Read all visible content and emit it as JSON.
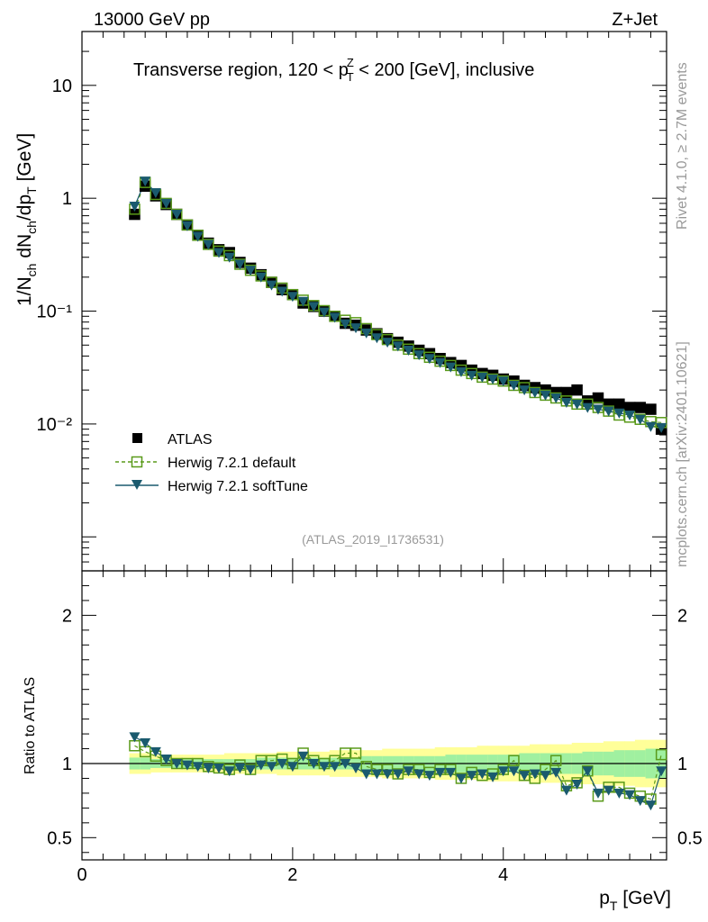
{
  "header": {
    "energy_label": "13000 GeV pp",
    "process_label": "Z+Jet",
    "side_rivet": "Rivet 4.1.0, ≥ 2.7M events",
    "side_source": "mcplots.cern.ch [arXiv:2401.10621]",
    "analysis_id": "(ATLAS_2019_I1736531)"
  },
  "colors": {
    "atlas": "#000000",
    "herwig_default": "#5a9a1a",
    "herwig_soft": "#1a5a6e",
    "band_inner": "#a0f0a0",
    "band_outer": "#ffff99"
  },
  "chart_data": [
    {
      "type": "scatter",
      "panel": "main",
      "title_parts": {
        "prefix": "Transverse region, 120 < p",
        "sup": "Z",
        "sub": "T",
        "suffix": " < 200 [GeV], inclusive"
      },
      "ylabel": "1/N_ch dN_ch/dp_T [GeV]",
      "yscale": "log",
      "ylim": [
        0.0005,
        30
      ],
      "xlim": [
        0,
        5.55
      ],
      "ytick_labels": [
        "10",
        "1",
        "10⁻¹",
        "10⁻²"
      ],
      "x": [
        0.5,
        0.6,
        0.7,
        0.8,
        0.9,
        1.0,
        1.1,
        1.2,
        1.3,
        1.4,
        1.5,
        1.6,
        1.7,
        1.8,
        1.9,
        2.0,
        2.1,
        2.2,
        2.3,
        2.4,
        2.5,
        2.6,
        2.7,
        2.8,
        2.9,
        3.0,
        3.1,
        3.2,
        3.3,
        3.4,
        3.5,
        3.6,
        3.7,
        3.8,
        3.9,
        4.0,
        4.1,
        4.2,
        4.3,
        4.4,
        4.5,
        4.6,
        4.7,
        4.8,
        4.9,
        5.0,
        5.1,
        5.2,
        5.3,
        5.4,
        5.5
      ],
      "series": [
        {
          "name": "ATLAS",
          "marker": "square-filled",
          "values": [
            0.72,
            1.28,
            1.05,
            0.88,
            0.72,
            0.58,
            0.47,
            0.4,
            0.35,
            0.33,
            0.27,
            0.24,
            0.21,
            0.18,
            0.155,
            0.14,
            0.118,
            0.11,
            0.1,
            0.09,
            0.078,
            0.075,
            0.068,
            0.063,
            0.057,
            0.053,
            0.049,
            0.045,
            0.042,
            0.038,
            0.035,
            0.033,
            0.03,
            0.028,
            0.027,
            0.025,
            0.024,
            0.022,
            0.021,
            0.02,
            0.019,
            0.019,
            0.02,
            0.016,
            0.017,
            0.015,
            0.015,
            0.014,
            0.014,
            0.0135,
            0.009
          ]
        },
        {
          "name": "Herwig 7.2.1 default",
          "marker": "square-open",
          "line": "dashed",
          "values": [
            0.8,
            1.38,
            1.08,
            0.9,
            0.72,
            0.58,
            0.47,
            0.39,
            0.34,
            0.31,
            0.26,
            0.23,
            0.205,
            0.18,
            0.16,
            0.14,
            0.125,
            0.112,
            0.101,
            0.09,
            0.083,
            0.079,
            0.07,
            0.062,
            0.056,
            0.05,
            0.046,
            0.042,
            0.039,
            0.036,
            0.033,
            0.03,
            0.028,
            0.026,
            0.025,
            0.024,
            0.022,
            0.021,
            0.019,
            0.018,
            0.017,
            0.016,
            0.015,
            0.015,
            0.014,
            0.013,
            0.012,
            0.0115,
            0.011,
            0.0105,
            0.0103
          ]
        },
        {
          "name": "Herwig 7.2.1 softTune",
          "marker": "triangle-down-filled",
          "line": "solid",
          "values": [
            0.85,
            1.42,
            1.12,
            0.9,
            0.72,
            0.57,
            0.46,
            0.39,
            0.33,
            0.3,
            0.26,
            0.23,
            0.2,
            0.17,
            0.15,
            0.135,
            0.122,
            0.11,
            0.098,
            0.088,
            0.077,
            0.071,
            0.064,
            0.058,
            0.053,
            0.049,
            0.045,
            0.041,
            0.038,
            0.035,
            0.032,
            0.029,
            0.027,
            0.026,
            0.025,
            0.024,
            0.022,
            0.02,
            0.019,
            0.018,
            0.017,
            0.0155,
            0.015,
            0.014,
            0.0135,
            0.013,
            0.0125,
            0.012,
            0.011,
            0.0095,
            0.0093
          ]
        }
      ]
    },
    {
      "type": "scatter",
      "panel": "ratio",
      "xlabel": "p_T [GeV]",
      "ylabel": "Ratio to ATLAS",
      "ylim": [
        0.35,
        2.3
      ],
      "xlim": [
        0,
        5.55
      ],
      "xtick_labels": [
        "0",
        "2",
        "4"
      ],
      "ytick_labels": [
        "0.5",
        "1",
        "2"
      ],
      "x": [
        0.5,
        0.6,
        0.7,
        0.8,
        0.9,
        1.0,
        1.1,
        1.2,
        1.3,
        1.4,
        1.5,
        1.6,
        1.7,
        1.8,
        1.9,
        2.0,
        2.1,
        2.2,
        2.3,
        2.4,
        2.5,
        2.6,
        2.7,
        2.8,
        2.9,
        3.0,
        3.1,
        3.2,
        3.3,
        3.4,
        3.5,
        3.6,
        3.7,
        3.8,
        3.9,
        4.0,
        4.1,
        4.2,
        4.3,
        4.4,
        4.5,
        4.6,
        4.7,
        4.8,
        4.9,
        5.0,
        5.1,
        5.2,
        5.3,
        5.4,
        5.5
      ],
      "band_inner": [
        0.04,
        0.04,
        0.03,
        0.03,
        0.03,
        0.03,
        0.03,
        0.03,
        0.03,
        0.03,
        0.03,
        0.03,
        0.04,
        0.04,
        0.04,
        0.04,
        0.04,
        0.04,
        0.04,
        0.04,
        0.04,
        0.04,
        0.05,
        0.05,
        0.05,
        0.05,
        0.05,
        0.05,
        0.05,
        0.05,
        0.06,
        0.06,
        0.06,
        0.06,
        0.06,
        0.06,
        0.06,
        0.07,
        0.07,
        0.07,
        0.07,
        0.07,
        0.07,
        0.08,
        0.08,
        0.08,
        0.09,
        0.09,
        0.09,
        0.1,
        0.1
      ],
      "band_outer": [
        0.07,
        0.07,
        0.06,
        0.06,
        0.06,
        0.06,
        0.06,
        0.06,
        0.06,
        0.07,
        0.07,
        0.07,
        0.07,
        0.07,
        0.08,
        0.08,
        0.08,
        0.08,
        0.08,
        0.09,
        0.09,
        0.09,
        0.09,
        0.09,
        0.1,
        0.1,
        0.1,
        0.1,
        0.1,
        0.11,
        0.11,
        0.11,
        0.11,
        0.12,
        0.12,
        0.12,
        0.12,
        0.12,
        0.13,
        0.13,
        0.13,
        0.13,
        0.14,
        0.14,
        0.14,
        0.15,
        0.15,
        0.15,
        0.16,
        0.16,
        0.16
      ],
      "series": [
        {
          "name": "Herwig 7.2.1 default",
          "values": [
            1.12,
            1.08,
            1.05,
            1.02,
            1.0,
            1.0,
            1.0,
            0.98,
            0.97,
            0.96,
            0.99,
            0.96,
            1.02,
            1.02,
            1.03,
            1.0,
            1.07,
            1.02,
            1.0,
            1.02,
            1.07,
            1.07,
            0.98,
            0.96,
            0.96,
            0.93,
            0.96,
            0.96,
            0.94,
            0.96,
            0.96,
            0.9,
            0.94,
            0.92,
            0.93,
            0.96,
            1.02,
            0.92,
            0.9,
            0.96,
            1.02,
            0.85,
            0.87,
            0.95,
            0.78,
            0.84,
            0.84,
            0.8,
            0.78,
            0.76,
            1.06
          ]
        },
        {
          "name": "Herwig 7.2.1 softTune",
          "values": [
            1.18,
            1.14,
            1.08,
            1.03,
            1.0,
            0.99,
            0.98,
            0.97,
            0.97,
            0.95,
            0.97,
            0.96,
            0.99,
            0.98,
            1.0,
            0.98,
            1.05,
            1.0,
            0.98,
            0.98,
            1.0,
            0.97,
            0.93,
            0.93,
            0.93,
            0.93,
            0.95,
            0.93,
            0.92,
            0.94,
            0.94,
            0.9,
            0.92,
            0.93,
            0.91,
            0.95,
            0.95,
            0.92,
            0.93,
            0.92,
            0.94,
            0.82,
            0.86,
            0.95,
            0.8,
            0.82,
            0.8,
            0.79,
            0.75,
            0.72,
            0.95
          ]
        }
      ]
    }
  ],
  "legend": [
    {
      "label": "ATLAS"
    },
    {
      "label": "Herwig 7.2.1 default"
    },
    {
      "label": "Herwig 7.2.1 softTune"
    }
  ]
}
